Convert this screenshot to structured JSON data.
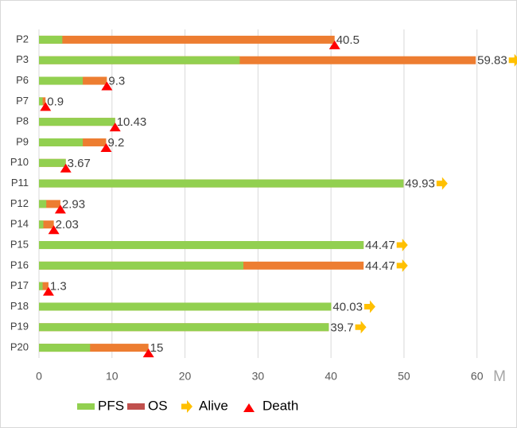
{
  "chart_data": {
    "type": "swimmer",
    "categories": [
      "P2",
      "P3",
      "P6",
      "P7",
      "P8",
      "P9",
      "P10",
      "P11",
      "P12",
      "P14",
      "P15",
      "P16",
      "P17",
      "P18",
      "P19",
      "P20"
    ],
    "series": [
      {
        "name": "PFS",
        "color": "#92d050",
        "values": [
          3.2,
          27.5,
          6,
          0.5,
          10.43,
          6,
          3.67,
          49.93,
          1,
          0.6,
          44.47,
          28,
          0.5,
          40.03,
          39.7,
          7
        ]
      },
      {
        "name": "OS",
        "color": "#ed7d31",
        "legend_color": "#c0504d",
        "values": [
          40.5,
          59.83,
          9.3,
          0.9,
          10.43,
          9.2,
          3.67,
          49.93,
          2.93,
          2.03,
          44.47,
          44.47,
          1.3,
          40.03,
          39.7,
          15
        ]
      }
    ],
    "status_legend": [
      {
        "name": "Alive",
        "color": "#ffc000"
      },
      {
        "name": "Death",
        "color": "#ff0000"
      }
    ],
    "status": [
      "Death",
      "Alive",
      "Death",
      "Death",
      "Death",
      "Death",
      "Death",
      "Alive",
      "Death",
      "Death",
      "Alive",
      "Alive",
      "Death",
      "Alive",
      "Alive",
      "Death"
    ],
    "xlabel": "M",
    "xlim": [
      0,
      63.3
    ],
    "xticks": [
      0,
      10,
      20,
      30,
      40,
      50,
      60
    ],
    "grid": true
  }
}
